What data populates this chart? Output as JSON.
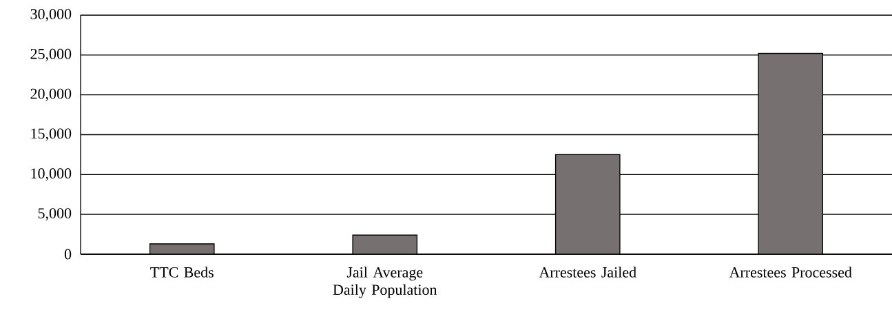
{
  "chart_data": {
    "type": "bar",
    "categories": [
      "TTC Beds",
      "Jail Average Daily Population",
      "Arrestees Jailed",
      "Arrestees Processed"
    ],
    "values": [
      1300,
      2400,
      12500,
      25200
    ],
    "color": "#767170",
    "ylim": [
      0,
      30000
    ],
    "yticks": [
      0,
      {
        "value": 5000,
        "label": "5,000"
      },
      {
        "value": 10000,
        "label": "10,000"
      },
      {
        "value": 15000,
        "label": "15,000"
      },
      {
        "value": 20000,
        "label": "20,000"
      },
      {
        "value": 25000,
        "label": "25,000"
      },
      {
        "value": 30000,
        "label": "30,000"
      }
    ],
    "grid": "y"
  }
}
